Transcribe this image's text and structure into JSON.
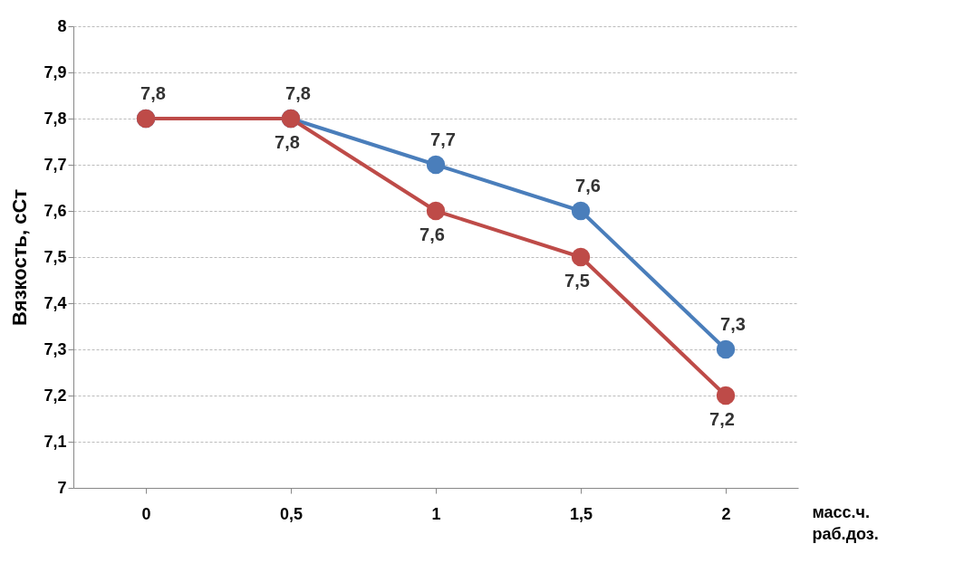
{
  "chart_data": {
    "type": "line",
    "ylabel": "Вязкость, сСт",
    "xlabel": "масс.ч. раб.доз.",
    "categories": [
      "0",
      "0,5",
      "1",
      "1,5",
      "2"
    ],
    "series": [
      {
        "color": "#4a7ebb",
        "values": [
          7.8,
          7.8,
          7.7,
          7.6,
          7.3
        ],
        "value_labels": [
          "7,8",
          "7,8",
          "7,7",
          "7,6",
          "7,3"
        ]
      },
      {
        "color": "#be4b48",
        "values": [
          7.8,
          7.8,
          7.6,
          7.5,
          7.2
        ],
        "value_labels": [
          null,
          "7,8",
          "7,6",
          "7,5",
          "7,2"
        ]
      }
    ],
    "ylim": [
      7,
      8
    ],
    "yticks": [
      7,
      {
        "value": 7.1,
        "label": "7,1"
      },
      {
        "value": 7.2,
        "label": "7,2"
      },
      {
        "value": 7.3,
        "label": "7,3"
      },
      {
        "value": 7.4,
        "label": "7,4"
      },
      {
        "value": 7.5,
        "label": "7,5"
      },
      {
        "value": 7.6,
        "label": "7,6"
      },
      {
        "value": 7.7,
        "label": "7,7"
      },
      {
        "value": 7.8,
        "label": "7,8"
      },
      {
        "value": 7.9,
        "label": "7,9"
      },
      8
    ],
    "grid": "y",
    "marker": "circle",
    "line_style": "solid"
  }
}
